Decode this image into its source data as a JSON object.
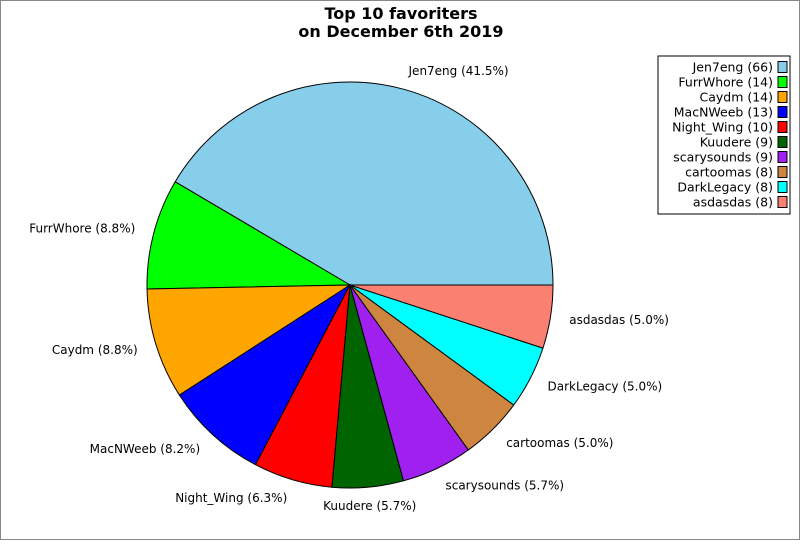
{
  "chart_data": {
    "type": "pie",
    "title": [
      "Top 10 favoriters",
      "on December 6th 2019"
    ],
    "legend_position": "top-right",
    "slices": [
      {
        "name": "Jen7eng",
        "value": 66,
        "percent_label": "41.5%",
        "color": "#87CEEB"
      },
      {
        "name": "FurrWhore",
        "value": 14,
        "percent_label": "8.8%",
        "color": "#00FF00"
      },
      {
        "name": "Caydm",
        "value": 14,
        "percent_label": "8.8%",
        "color": "#FFA500"
      },
      {
        "name": "MacNWeeb",
        "value": 13,
        "percent_label": "8.2%",
        "color": "#0000FF"
      },
      {
        "name": "Night_Wing",
        "value": 10,
        "percent_label": "6.3%",
        "color": "#FF0000"
      },
      {
        "name": "Kuudere",
        "value": 9,
        "percent_label": "5.7%",
        "color": "#006400"
      },
      {
        "name": "scarysounds",
        "value": 9,
        "percent_label": "5.7%",
        "color": "#A020F0"
      },
      {
        "name": "cartoomas",
        "value": 8,
        "percent_label": "5.0%",
        "color": "#CD853F"
      },
      {
        "name": "DarkLegacy",
        "value": 8,
        "percent_label": "5.0%",
        "color": "#00FFFF"
      },
      {
        "name": "asdasdas",
        "value": 8,
        "percent_label": "5.0%",
        "color": "#FA8072"
      }
    ]
  }
}
